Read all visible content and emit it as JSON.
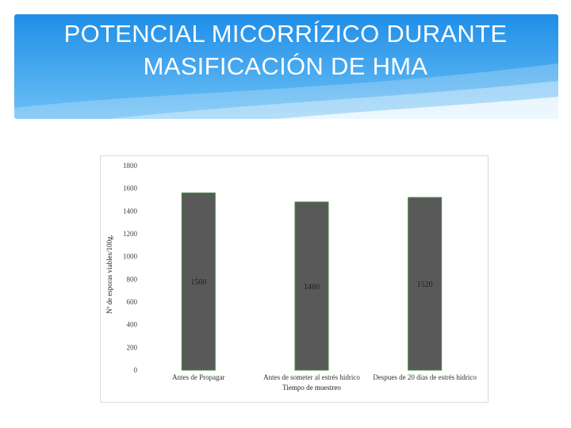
{
  "slide": {
    "title_line1": "POTENCIAL MICORRÍZICO DURANTE",
    "title_line2": "MASIFICACIÓN DE HMA"
  },
  "colors": {
    "banner_top": "#1f8ee8",
    "banner_bottom": "#6cc0f5",
    "bar_fill": "#595959",
    "bar_stroke": "#3f8f3f"
  },
  "chart_data": {
    "type": "bar",
    "title": "",
    "categories": [
      "Antes de Propagar",
      "Antes de someter al estrés hídrico",
      "Despues de 20 días de estrés hídrico"
    ],
    "values": [
      1560,
      1480,
      1520
    ],
    "data_labels": [
      "1560",
      "1480",
      "1520"
    ],
    "xlabel": "Tiempo de muestreo",
    "ylabel": "Nº de esporas viables/100g.",
    "ylim": [
      0,
      1800
    ],
    "yticks": [
      0,
      200,
      400,
      600,
      800,
      1000,
      1200,
      1400,
      1600,
      1800
    ],
    "ytick_labels": [
      "0",
      "200",
      "400",
      "600",
      "800",
      "1000",
      "1200",
      "1400",
      "1600",
      "1800"
    ],
    "grid": false,
    "legend": "none"
  }
}
